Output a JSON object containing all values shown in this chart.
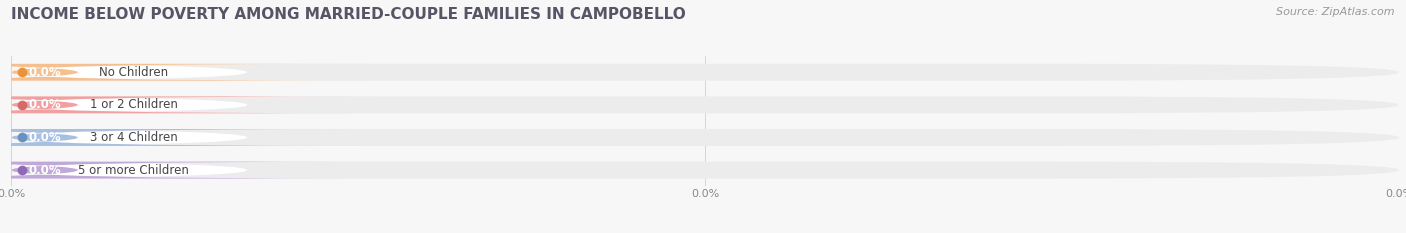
{
  "title": "INCOME BELOW POVERTY AMONG MARRIED-COUPLE FAMILIES IN CAMPOBELLO",
  "source": "Source: ZipAtlas.com",
  "categories": [
    "No Children",
    "1 or 2 Children",
    "3 or 4 Children",
    "5 or more Children"
  ],
  "values": [
    0.0,
    0.0,
    0.0,
    0.0
  ],
  "bar_colors": [
    "#f5c090",
    "#f0a0a0",
    "#a8c0e0",
    "#c0a8d8"
  ],
  "dot_colors": [
    "#e8943a",
    "#d96868",
    "#6890c0",
    "#9068b8"
  ],
  "value_label_colors": [
    "#e8943a",
    "#d96868",
    "#6890c0",
    "#9068b8"
  ],
  "background_color": "#f7f7f7",
  "bar_bg_color": "#ececec",
  "title_color": "#555566",
  "source_color": "#999999",
  "label_text_color": "#444444",
  "title_fontsize": 11,
  "source_fontsize": 8,
  "label_fontsize": 8.5,
  "value_fontsize": 8.5,
  "xtick_fontsize": 8,
  "xtick_color": "#888888"
}
